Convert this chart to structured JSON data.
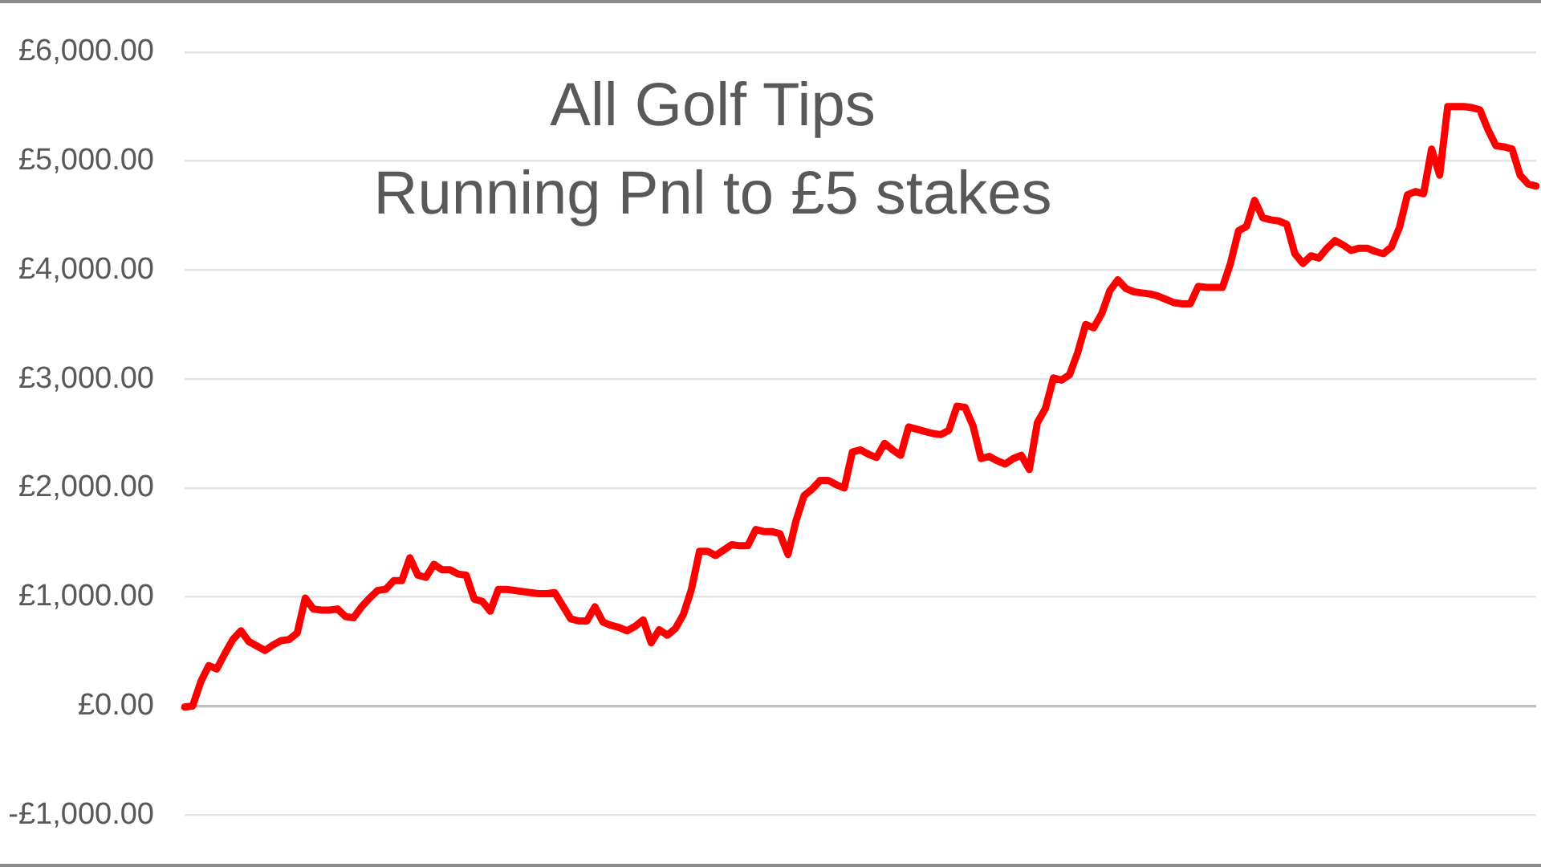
{
  "chart_data": {
    "type": "line",
    "title": "All Golf Tips",
    "subtitle": "Running Pnl to £5 stakes",
    "categories": [
      null,
      null,
      null,
      null,
      null,
      null,
      null,
      null,
      null,
      null,
      null,
      null,
      null,
      null,
      null,
      null,
      null,
      null,
      null,
      null,
      null,
      null,
      null,
      null,
      null,
      null,
      null,
      null,
      null,
      null,
      null,
      null,
      null,
      null,
      null,
      null,
      null,
      null,
      null,
      null,
      null,
      null,
      null,
      null,
      null,
      null,
      null,
      null,
      null,
      null,
      null,
      null,
      null,
      null,
      null,
      null,
      null,
      null,
      null,
      null,
      null,
      null,
      null,
      null,
      null,
      null,
      null,
      null,
      null,
      null,
      null,
      null,
      null,
      null,
      null,
      null,
      null,
      null,
      null,
      null,
      null,
      null,
      null,
      null,
      null,
      null,
      null,
      null,
      null,
      null,
      null,
      null,
      null,
      null,
      null,
      null,
      null,
      null,
      null,
      null,
      null,
      null,
      null,
      null,
      null,
      null,
      null,
      null,
      null,
      null,
      null,
      null,
      null,
      null,
      null,
      null,
      null,
      null,
      null,
      null,
      null,
      null,
      null,
      null,
      null,
      null,
      null,
      null,
      null,
      null,
      null,
      null,
      null,
      null,
      null,
      null,
      null,
      null,
      null,
      null,
      null,
      null,
      null,
      null,
      null,
      null,
      null,
      null,
      null,
      null,
      null,
      null,
      null,
      null,
      null,
      null,
      null,
      null,
      null,
      null,
      null,
      null,
      null,
      null,
      null,
      null,
      null,
      null,
      null
    ],
    "values": [
      -10,
      0,
      220,
      370,
      340,
      480,
      610,
      690,
      590,
      550,
      510,
      560,
      600,
      610,
      670,
      990,
      890,
      880,
      880,
      890,
      820,
      810,
      910,
      990,
      1060,
      1070,
      1150,
      1150,
      1360,
      1200,
      1180,
      1300,
      1250,
      1250,
      1210,
      1200,
      980,
      960,
      870,
      1070,
      1070,
      1060,
      1050,
      1040,
      1030,
      1030,
      1040,
      920,
      800,
      780,
      780,
      910,
      770,
      740,
      720,
      690,
      730,
      790,
      580,
      700,
      650,
      710,
      840,
      1070,
      1420,
      1420,
      1380,
      1430,
      1480,
      1470,
      1470,
      1620,
      1600,
      1600,
      1580,
      1390,
      1700,
      1930,
      1990,
      2070,
      2070,
      2030,
      2000,
      2330,
      2350,
      2310,
      2280,
      2410,
      2350,
      2300,
      2560,
      2540,
      2520,
      2500,
      2490,
      2530,
      2750,
      2740,
      2570,
      2270,
      2290,
      2250,
      2220,
      2270,
      2300,
      2170,
      2600,
      2730,
      3010,
      2990,
      3040,
      3240,
      3500,
      3470,
      3600,
      3810,
      3910,
      3830,
      3800,
      3790,
      3780,
      3760,
      3730,
      3700,
      3690,
      3690,
      3850,
      3840,
      3840,
      3840,
      4060,
      4360,
      4400,
      4640,
      4480,
      4460,
      4450,
      4420,
      4150,
      4060,
      4130,
      4110,
      4200,
      4270,
      4230,
      4180,
      4200,
      4200,
      4170,
      4150,
      4210,
      4390,
      4690,
      4720,
      4700,
      5110,
      4870,
      5500,
      5500,
      5500,
      5490,
      5470,
      5290,
      5140,
      5130,
      5110,
      4870,
      4790,
      4770
    ],
    "color": "#ff0000",
    "ylim": [
      -1000,
      6000
    ],
    "yticks": [
      {
        "value": -1000,
        "label": "-£1,000.00"
      },
      {
        "value": 0,
        "label": "£0.00"
      },
      {
        "value": 1000,
        "label": "£1,000.00"
      },
      {
        "value": 2000,
        "label": "£2,000.00"
      },
      {
        "value": 3000,
        "label": "£3,000.00"
      },
      {
        "value": 4000,
        "label": "£4,000.00"
      },
      {
        "value": 5000,
        "label": "£5,000.00"
      },
      {
        "value": 6000,
        "label": "£6,000.00"
      }
    ],
    "grid": "y",
    "tick_labels": "y",
    "marker": "none",
    "line_style": "solid"
  }
}
